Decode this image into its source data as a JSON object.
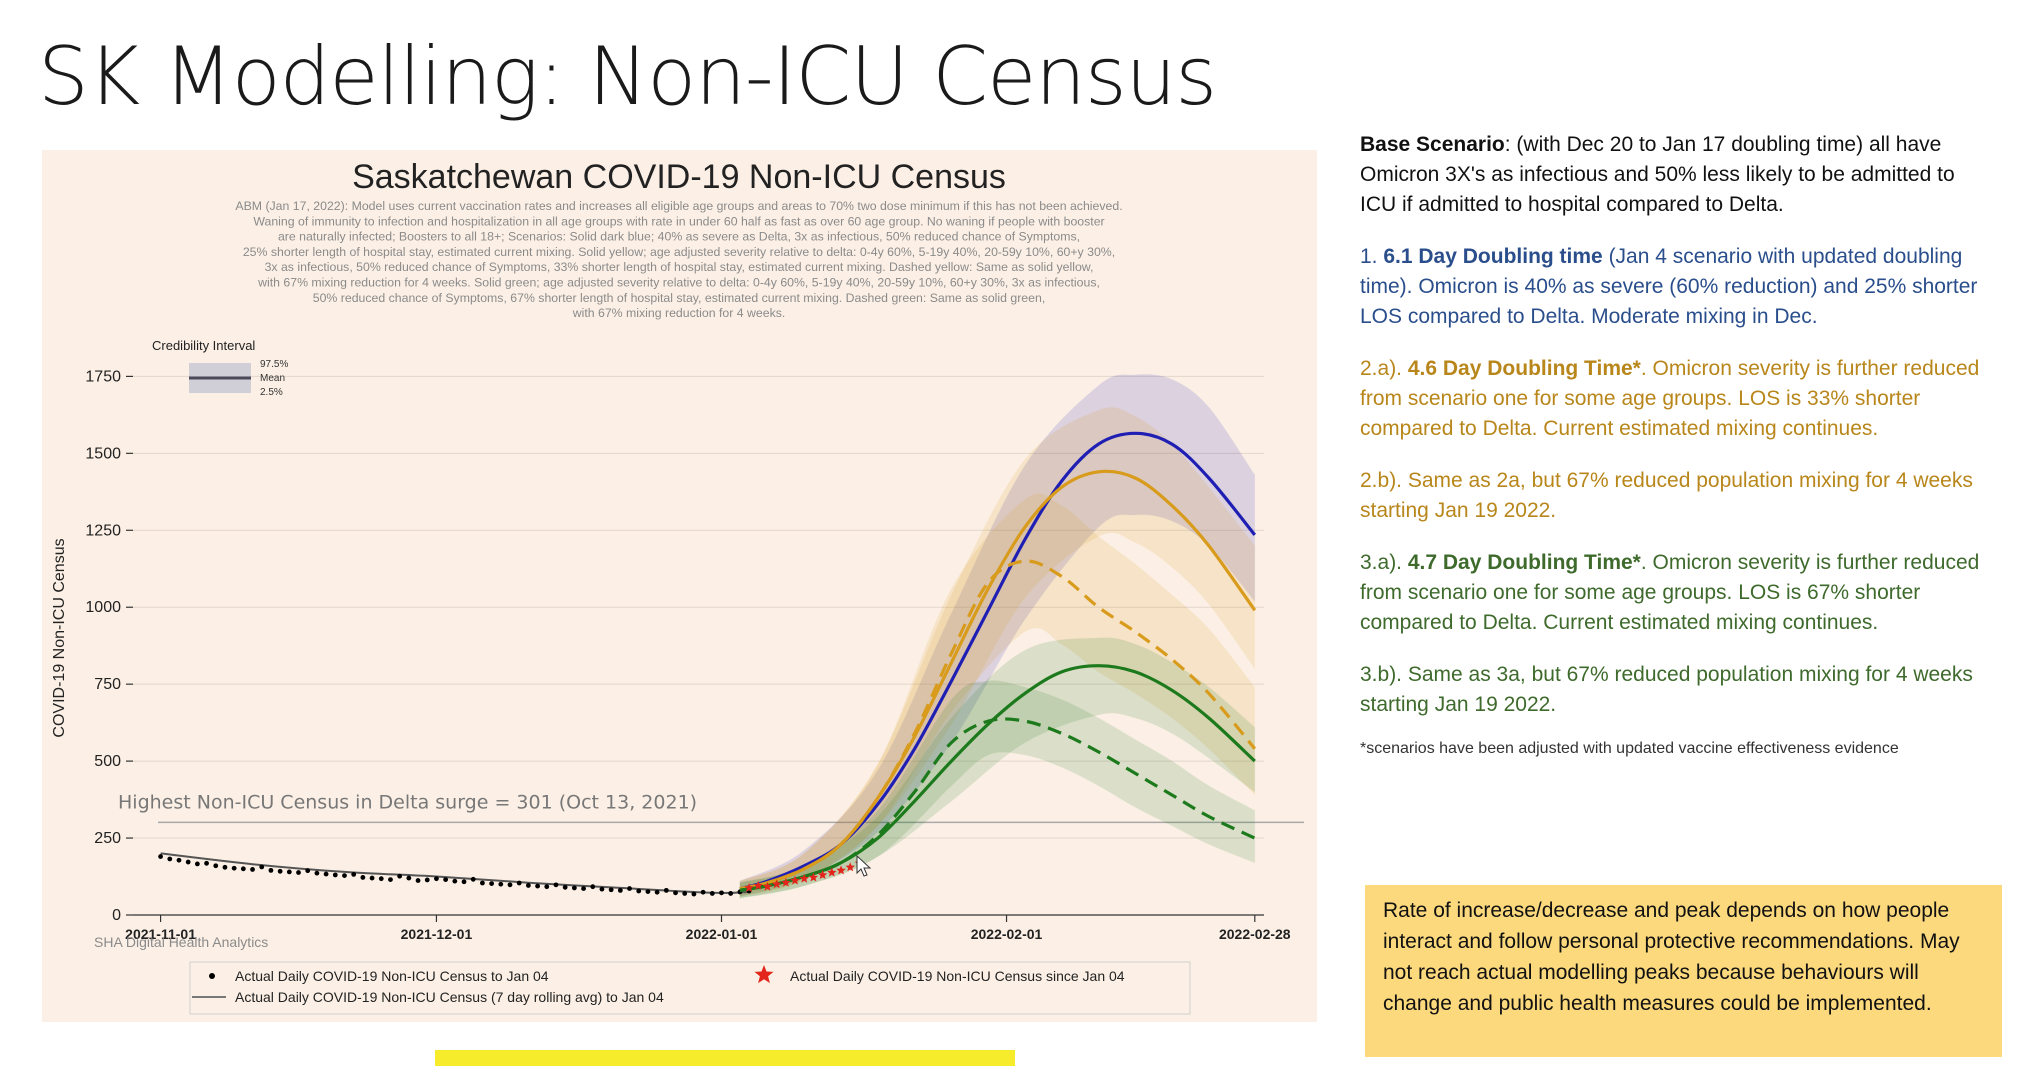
{
  "slide": {
    "title": "SK Modelling: Non-ICU Census"
  },
  "right_panel": {
    "base": {
      "label": "Base Scenario",
      "text": ": (with Dec 20 to Jan 17 doubling time) all have Omicron 3X's as infectious and 50% less likely to be admitted to ICU if admitted to hospital compared to Delta."
    },
    "s1": {
      "prefix": "1. ",
      "bold": "6.1 Day Doubling time",
      "text": " (Jan 4 scenario with updated doubling time).  Omicron is 40% as severe (60% reduction) and 25% shorter LOS  compared to Delta.  Moderate mixing in Dec."
    },
    "s2a": {
      "prefix": "2.a). ",
      "bold": "4.6 Day Doubling Time*",
      "text": ".  Omicron severity is further reduced from scenario one for some age groups.  LOS is  33% shorter compared to Delta.  Current estimated mixing continues."
    },
    "s2b": {
      "text": "2.b).  Same as 2a, but 67% reduced population mixing for 4 weeks starting Jan 19 2022."
    },
    "s3a": {
      "prefix": "3.a).  ",
      "bold": "4.7 Day Doubling Time*",
      "text": ".  Omicron severity is further reduced from scenario one for some age groups. LOS is 67% shorter compared to Delta.  Current estimated mixing continues."
    },
    "s3b": {
      "text": "3.b). Same as 3a, but 67% reduced population mixing for 4 weeks starting Jan 19 2022."
    },
    "footnote": "*scenarios have been adjusted with updated vaccine effectiveness evidence",
    "callout": "Rate of increase/decrease and peak depends on how people interact and follow personal protective recommendations. May not reach actual modelling peaks because behaviours will change and public health measures could be implemented."
  },
  "chart_data": {
    "type": "line",
    "title": "Saskatchewan COVID-19 Non-ICU Census",
    "subtitle_lines": [
      "ABM (Jan 17, 2022): Model uses current vaccination rates and increases all eligible age groups and areas to 70% two dose minimum if this has not been achieved.",
      "Waning of immunity to infection and hospitalization in all age groups with rate in under 60 half as fast as over 60 age group. No waning if people with booster",
      "are naturally infected; Boosters to all 18+; Scenarios: Solid dark blue; 40% as severe as Delta, 3x as infectious, 50% reduced chance of Symptoms,",
      "25% shorter length of hospital stay, estimated current mixing. Solid yellow; age adjusted severity relative to delta: 0-4y 60%, 5-19y 40%, 20-59y 10%, 60+y 30%,",
      "3x as infectious, 50% reduced chance of Symptoms, 33% shorter length of hospital stay, estimated current mixing. Dashed yellow: Same as solid yellow,",
      "with 67% mixing reduction for 4 weeks. Solid green; age adjusted severity relative to delta: 0-4y 60%, 5-19y 40%, 20-59y 10%, 60+y 30%, 3x as infectious,",
      "50% reduced chance of Symptoms, 67% shorter length of hospital stay, estimated current mixing. Dashed green: Same as solid green,",
      "with 67% mixing reduction for 4 weeks."
    ],
    "ylabel": "COVID-19 Non-ICU Census",
    "xlabel": "",
    "x_range_days": [
      -3,
      120
    ],
    "ylim": [
      0,
      1800
    ],
    "y_ticks": [
      0,
      250,
      500,
      750,
      1000,
      1250,
      1500,
      1750
    ],
    "x_ticks": [
      {
        "day": 0,
        "label": "2021-11-01"
      },
      {
        "day": 30,
        "label": "2021-12-01"
      },
      {
        "day": 61,
        "label": "2022-01-01"
      },
      {
        "day": 92,
        "label": "2022-02-01"
      },
      {
        "day": 119,
        "label": "2022-02-28"
      }
    ],
    "gridlines": true,
    "reference_line": {
      "y": 301,
      "label": "Highest Non-ICU Census in Delta surge = 301 (Oct 13, 2021)"
    },
    "credibility_legend": {
      "title": "Credibility Interval",
      "upper": "97.5%",
      "mean": "Mean",
      "lower": "2.5%"
    },
    "source_note": "SHA Digital Health Analytics",
    "legend": {
      "position": "bottom",
      "items": [
        {
          "label": "Actual Daily COVID-19 Non-ICU Census to Jan 04",
          "marker": "dot"
        },
        {
          "label": "Actual Daily COVID-19 Non-ICU Census since Jan 04",
          "marker": "star"
        },
        {
          "label": "Actual Daily COVID-19 Non-ICU Census (7 day rolling avg) to Jan 04",
          "marker": "line"
        }
      ]
    },
    "series": [
      {
        "name": "Scenario 1 (solid dark blue)",
        "color": "#1f1fb4",
        "dash": false,
        "x": [
          63,
          66,
          70,
          74,
          78,
          82,
          86,
          90,
          94,
          98,
          102,
          106,
          110,
          114,
          119
        ],
        "y": [
          85,
          110,
          160,
          230,
          360,
          540,
          760,
          990,
          1220,
          1410,
          1530,
          1565,
          1530,
          1420,
          1235
        ],
        "band_x": [
          63,
          70,
          78,
          86,
          94,
          102,
          106,
          110,
          114,
          119
        ],
        "band_low": [
          60,
          120,
          270,
          560,
          960,
          1260,
          1300,
          1280,
          1200,
          1020
        ],
        "band_high": [
          110,
          210,
          470,
          980,
          1460,
          1720,
          1755,
          1740,
          1650,
          1430
        ]
      },
      {
        "name": "Scenario 2a (solid yellow)",
        "color": "#d89b1c",
        "dash": false,
        "x": [
          63,
          66,
          70,
          74,
          78,
          82,
          86,
          90,
          94,
          98,
          102,
          106,
          110,
          114,
          119
        ],
        "y": [
          85,
          105,
          150,
          230,
          380,
          580,
          820,
          1060,
          1260,
          1390,
          1440,
          1420,
          1330,
          1200,
          990
        ],
        "band_x": [
          63,
          70,
          78,
          86,
          94,
          102,
          106,
          110,
          114,
          119
        ],
        "band_low": [
          60,
          115,
          290,
          620,
          1030,
          1230,
          1210,
          1130,
          1010,
          800
        ],
        "band_high": [
          110,
          200,
          490,
          1040,
          1480,
          1640,
          1620,
          1530,
          1390,
          1200
        ]
      },
      {
        "name": "Scenario 2b (dashed yellow)",
        "color": "#d89b1c",
        "dash": true,
        "x": [
          63,
          66,
          70,
          74,
          78,
          82,
          86,
          90,
          94,
          98,
          102,
          106,
          110,
          114,
          119
        ],
        "y": [
          85,
          105,
          150,
          230,
          380,
          590,
          850,
          1080,
          1150,
          1100,
          1000,
          920,
          830,
          720,
          540
        ],
        "band_x": [
          63,
          70,
          78,
          86,
          94,
          98,
          102,
          106,
          110,
          114,
          119
        ],
        "band_low": [
          60,
          115,
          290,
          660,
          920,
          880,
          790,
          720,
          640,
          540,
          390
        ],
        "band_high": [
          110,
          200,
          490,
          1060,
          1350,
          1330,
          1230,
          1140,
          1040,
          930,
          740
        ]
      },
      {
        "name": "Scenario 3a (solid green)",
        "color": "#1c7a1c",
        "dash": false,
        "x": [
          63,
          66,
          70,
          74,
          78,
          82,
          86,
          90,
          94,
          98,
          102,
          106,
          110,
          114,
          119
        ],
        "y": [
          80,
          95,
          125,
          170,
          250,
          370,
          500,
          620,
          720,
          790,
          810,
          790,
          730,
          640,
          500
        ],
        "band_x": [
          63,
          70,
          78,
          86,
          94,
          102,
          106,
          110,
          114,
          119
        ],
        "band_low": [
          55,
          95,
          190,
          370,
          560,
          650,
          640,
          590,
          510,
          400
        ],
        "band_high": [
          105,
          160,
          320,
          640,
          860,
          900,
          880,
          820,
          740,
          610
        ]
      },
      {
        "name": "Scenario 3b (dashed green)",
        "color": "#1c7a1c",
        "dash": true,
        "x": [
          63,
          66,
          70,
          74,
          78,
          82,
          86,
          90,
          94,
          98,
          102,
          106,
          110,
          114,
          119
        ],
        "y": [
          80,
          95,
          125,
          170,
          260,
          400,
          560,
          630,
          630,
          590,
          530,
          460,
          390,
          320,
          250
        ],
        "band_x": [
          63,
          70,
          78,
          86,
          90,
          94,
          98,
          102,
          106,
          110,
          114,
          119
        ],
        "band_low": [
          55,
          95,
          190,
          420,
          520,
          520,
          480,
          420,
          350,
          290,
          230,
          170
        ],
        "band_high": [
          105,
          160,
          340,
          700,
          760,
          740,
          700,
          640,
          570,
          500,
          420,
          340
        ]
      }
    ],
    "actual_dots": {
      "color": "#000000",
      "x": [
        0,
        1,
        2,
        3,
        4,
        5,
        6,
        7,
        8,
        9,
        10,
        11,
        12,
        13,
        14,
        15,
        16,
        17,
        18,
        19,
        20,
        21,
        22,
        23,
        24,
        25,
        26,
        27,
        28,
        29,
        30,
        31,
        32,
        33,
        34,
        35,
        36,
        37,
        38,
        39,
        40,
        41,
        42,
        43,
        44,
        45,
        46,
        47,
        48,
        49,
        50,
        51,
        52,
        53,
        54,
        55,
        56,
        57,
        58,
        59,
        60,
        61,
        62,
        63,
        64
      ],
      "y": [
        190,
        182,
        178,
        172,
        166,
        168,
        160,
        155,
        152,
        150,
        148,
        156,
        145,
        142,
        140,
        138,
        144,
        136,
        133,
        130,
        128,
        132,
        122,
        120,
        118,
        115,
        126,
        120,
        112,
        114,
        118,
        115,
        110,
        108,
        116,
        104,
        102,
        100,
        98,
        104,
        96,
        94,
        92,
        98,
        90,
        88,
        86,
        92,
        84,
        82,
        80,
        86,
        78,
        76,
        74,
        80,
        72,
        70,
        68,
        74,
        70,
        72,
        70,
        75,
        78
      ]
    },
    "rolling_avg": {
      "color": "#555555",
      "x": [
        0,
        10,
        20,
        30,
        40,
        50,
        60,
        64
      ],
      "y": [
        200,
        165,
        140,
        125,
        105,
        88,
        72,
        75
      ]
    },
    "actual_stars": {
      "color": "#e3261c",
      "x": [
        64,
        65,
        66,
        67,
        68,
        69,
        70,
        71,
        72,
        73,
        74,
        75,
        76
      ],
      "y": [
        88,
        95,
        92,
        100,
        105,
        112,
        118,
        122,
        130,
        138,
        145,
        155,
        168
      ]
    }
  }
}
